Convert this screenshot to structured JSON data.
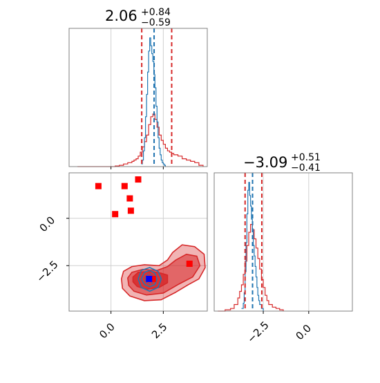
{
  "chart_data": {
    "type": "corner",
    "titles": [
      {
        "panel": "x-marginal",
        "median": "2.06",
        "plus": "+0.84",
        "minus": "−0.59"
      },
      {
        "panel": "y-marginal",
        "median": "−3.09",
        "plus": "+0.51",
        "minus": "−0.41"
      }
    ],
    "axes": {
      "x_range": [
        -2.0,
        4.6
      ],
      "y_range": [
        -4.9,
        2.4
      ],
      "x_ticks": [
        {
          "value": 0.0,
          "label": "0.0"
        },
        {
          "value": 2.5,
          "label": "2.5"
        }
      ],
      "y_ticks": [
        {
          "value": 0.0,
          "label": "0.0"
        },
        {
          "value": -2.5,
          "label": "−2.5"
        }
      ],
      "y_marginal_x_range": [
        -5.2,
        2.4
      ],
      "y_marginal_x_ticks": [
        {
          "value": -2.5,
          "label": "−2.5"
        },
        {
          "value": 0.0,
          "label": "0.0"
        }
      ]
    },
    "grid": true,
    "series_colors": {
      "red": "#d62728",
      "blue": "#1f77b4",
      "marker": "#ff0000",
      "truth": "#0000ff"
    },
    "x_marginal": {
      "quantile_lines_red": [
        1.47,
        2.06,
        2.9
      ],
      "quantile_lines_blue": [
        2.06
      ],
      "blue_hist": {
        "x": [
          1.45,
          1.5,
          1.55,
          1.6,
          1.65,
          1.7,
          1.75,
          1.8,
          1.85,
          1.9,
          1.95,
          2.0,
          2.05,
          2.1,
          2.15,
          2.2,
          2.25,
          2.3,
          2.35,
          2.4,
          2.45,
          2.5,
          2.55,
          2.6
        ],
        "y": [
          0.02,
          0.05,
          0.12,
          0.22,
          0.38,
          0.55,
          0.72,
          0.88,
          0.98,
          0.92,
          0.86,
          0.8,
          0.7,
          0.6,
          0.46,
          0.34,
          0.22,
          0.14,
          0.09,
          0.05,
          0.03,
          0.02,
          0.01,
          0.0
        ]
      },
      "red_hist": {
        "x": [
          -1.6,
          -1.2,
          -0.8,
          -0.4,
          -0.1,
          0.2,
          0.4,
          0.6,
          0.8,
          1.0,
          1.1,
          1.2,
          1.3,
          1.4,
          1.5,
          1.6,
          1.7,
          1.8,
          1.9,
          2.0,
          2.1,
          2.2,
          2.3,
          2.4,
          2.5,
          2.6,
          2.7,
          2.8,
          2.9,
          3.0,
          3.2,
          3.4,
          3.6,
          3.8,
          4.0,
          4.2,
          4.4
        ],
        "y": [
          0.0,
          0.0,
          0.0,
          0.0,
          0.0,
          0.005,
          0.01,
          0.02,
          0.03,
          0.04,
          0.05,
          0.06,
          0.08,
          0.11,
          0.15,
          0.19,
          0.24,
          0.32,
          0.38,
          0.4,
          0.36,
          0.3,
          0.24,
          0.2,
          0.17,
          0.14,
          0.12,
          0.11,
          0.1,
          0.09,
          0.08,
          0.06,
          0.05,
          0.04,
          0.03,
          0.01,
          0.0
        ]
      }
    },
    "y_marginal": {
      "quantile_lines_red": [
        -3.5,
        -3.09,
        -2.58
      ],
      "quantile_lines_blue": [
        -3.09
      ],
      "blue_hist": {
        "x": [
          -3.7,
          -3.6,
          -3.55,
          -3.5,
          -3.45,
          -3.4,
          -3.35,
          -3.3,
          -3.25,
          -3.2,
          -3.15,
          -3.1,
          -3.05,
          -3.0,
          -2.95,
          -2.9,
          -2.85,
          -2.8,
          -2.75,
          -2.7,
          -2.6,
          -2.5
        ],
        "y": [
          0.02,
          0.06,
          0.14,
          0.3,
          0.52,
          0.74,
          0.92,
          0.98,
          0.88,
          0.8,
          0.7,
          0.62,
          0.5,
          0.42,
          0.34,
          0.26,
          0.18,
          0.12,
          0.08,
          0.05,
          0.02,
          0.0
        ]
      },
      "red_hist": {
        "x": [
          -5.0,
          -4.6,
          -4.3,
          -4.1,
          -3.9,
          -3.8,
          -3.7,
          -3.6,
          -3.5,
          -3.4,
          -3.3,
          -3.2,
          -3.1,
          -3.0,
          -2.9,
          -2.8,
          -2.7,
          -2.6,
          -2.5,
          -2.4,
          -2.3,
          -2.2,
          -2.0,
          -1.8,
          -1.6,
          -1.4
        ],
        "y": [
          0.0,
          0.01,
          0.02,
          0.05,
          0.1,
          0.15,
          0.2,
          0.28,
          0.38,
          0.5,
          0.6,
          0.66,
          0.62,
          0.55,
          0.48,
          0.4,
          0.32,
          0.24,
          0.18,
          0.12,
          0.08,
          0.05,
          0.03,
          0.02,
          0.01,
          0.0
        ]
      }
    },
    "joint": {
      "red_markers": [
        {
          "x": -0.6,
          "y": 1.7
        },
        {
          "x": 0.65,
          "y": 1.7
        },
        {
          "x": 1.3,
          "y": 2.05
        },
        {
          "x": 0.9,
          "y": 1.05
        },
        {
          "x": 0.95,
          "y": 0.4
        },
        {
          "x": 0.2,
          "y": 0.22
        },
        {
          "x": 3.75,
          "y": -2.4
        },
        {
          "x": 2.0,
          "y": -3.2
        }
      ],
      "truth_marker": {
        "x": 1.82,
        "y": -3.2
      },
      "red_contours": [
        {
          "level": "outer",
          "points": [
            [
              0.5,
              -3.2
            ],
            [
              0.6,
              -2.8
            ],
            [
              1.0,
              -2.55
            ],
            [
              1.6,
              -2.45
            ],
            [
              2.3,
              -2.5
            ],
            [
              2.7,
              -2.2
            ],
            [
              2.95,
              -1.8
            ],
            [
              3.4,
              -1.4
            ],
            [
              4.0,
              -1.5
            ],
            [
              4.45,
              -1.9
            ],
            [
              4.5,
              -2.6
            ],
            [
              4.2,
              -3.2
            ],
            [
              3.7,
              -3.5
            ],
            [
              3.1,
              -3.9
            ],
            [
              2.4,
              -4.3
            ],
            [
              1.6,
              -4.35
            ],
            [
              0.9,
              -4.1
            ],
            [
              0.55,
              -3.7
            ]
          ]
        },
        {
          "level": "mid",
          "points": [
            [
              0.8,
              -3.15
            ],
            [
              1.0,
              -2.85
            ],
            [
              1.5,
              -2.7
            ],
            [
              2.2,
              -2.75
            ],
            [
              2.7,
              -2.55
            ],
            [
              3.1,
              -2.2
            ],
            [
              3.6,
              -1.9
            ],
            [
              4.1,
              -2.0
            ],
            [
              4.25,
              -2.5
            ],
            [
              3.9,
              -3.1
            ],
            [
              3.2,
              -3.5
            ],
            [
              2.5,
              -3.95
            ],
            [
              1.7,
              -4.05
            ],
            [
              1.1,
              -3.85
            ],
            [
              0.85,
              -3.55
            ]
          ]
        },
        {
          "level": "inner",
          "points": [
            [
              1.05,
              -3.1
            ],
            [
              1.3,
              -2.85
            ],
            [
              1.9,
              -2.8
            ],
            [
              2.4,
              -2.9
            ],
            [
              2.7,
              -3.0
            ],
            [
              2.7,
              -3.4
            ],
            [
              2.3,
              -3.65
            ],
            [
              1.7,
              -3.75
            ],
            [
              1.25,
              -3.6
            ],
            [
              1.05,
              -3.35
            ]
          ]
        }
      ],
      "blue_contours": [
        {
          "level": "outer",
          "points": [
            [
              1.3,
              -3.2
            ],
            [
              1.45,
              -2.75
            ],
            [
              1.85,
              -2.6
            ],
            [
              2.25,
              -2.8
            ],
            [
              2.4,
              -3.2
            ],
            [
              2.25,
              -3.65
            ],
            [
              1.85,
              -3.85
            ],
            [
              1.45,
              -3.65
            ]
          ]
        },
        {
          "level": "mid",
          "points": [
            [
              1.45,
              -3.2
            ],
            [
              1.6,
              -2.85
            ],
            [
              1.85,
              -2.75
            ],
            [
              2.1,
              -2.9
            ],
            [
              2.2,
              -3.2
            ],
            [
              2.1,
              -3.5
            ],
            [
              1.85,
              -3.62
            ],
            [
              1.6,
              -3.5
            ]
          ]
        },
        {
          "level": "inner",
          "points": [
            [
              1.6,
              -3.2
            ],
            [
              1.7,
              -2.98
            ],
            [
              1.85,
              -2.93
            ],
            [
              2.0,
              -3.02
            ],
            [
              2.05,
              -3.2
            ],
            [
              2.0,
              -3.4
            ],
            [
              1.85,
              -3.46
            ],
            [
              1.7,
              -3.4
            ]
          ]
        }
      ]
    }
  }
}
